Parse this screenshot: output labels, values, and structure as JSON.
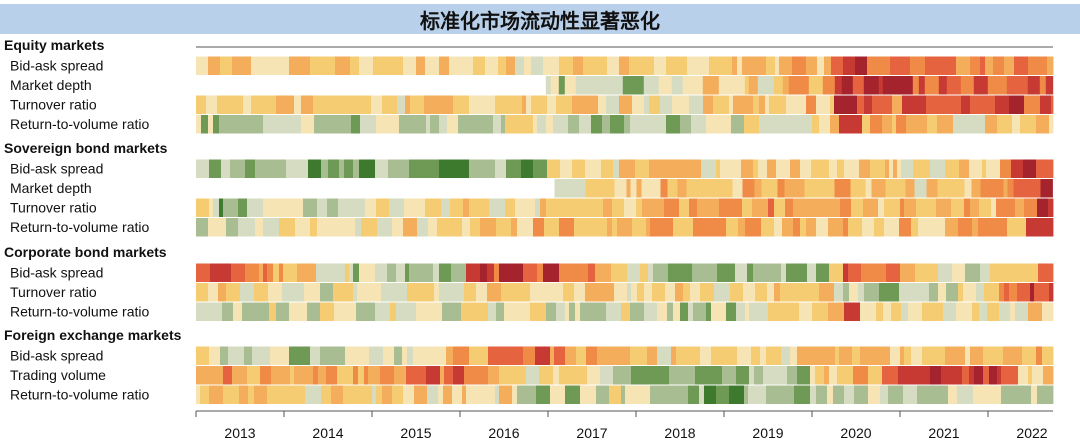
{
  "title": "标准化市场流动性显著恶化",
  "chart_data": {
    "type": "heatmap",
    "title": "标准化市场流动性显著恶化",
    "x_start": 2012.55,
    "x_end": 2022.35,
    "years": [
      "2013",
      "2014",
      "2015",
      "2016",
      "2017",
      "2018",
      "2019",
      "2020",
      "2021",
      "2022"
    ],
    "palette": [
      "#3d7a2e",
      "#6f9a56",
      "#a9bd92",
      "#d6dcc2",
      "#f6e4b4",
      "#f6cc73",
      "#f4ad5a",
      "#ef8a47",
      "#e5633f",
      "#c73a34",
      "#a5232c"
    ],
    "groups": [
      {
        "name": "Equity markets",
        "rows": [
          {
            "label": "Bid-ask spread",
            "start": 2012.55,
            "profile": [
              [
                2012.55,
                4.6
              ],
              [
                2014.5,
                5.2
              ],
              [
                2017.0,
                4.8
              ],
              [
                2018.2,
                4.0
              ],
              [
                2019.8,
                5.5
              ],
              [
                2019.95,
                9.6
              ],
              [
                2020.3,
                8.5
              ],
              [
                2021.2,
                7.0
              ],
              [
                2022.0,
                7.2
              ],
              [
                2022.3,
                7.0
              ]
            ]
          },
          {
            "label": "Market depth",
            "start": 2016.55,
            "profile": [
              [
                2016.55,
                2.2
              ],
              [
                2017.5,
                2.6
              ],
              [
                2018.4,
                4.5
              ],
              [
                2019.8,
                5.5
              ],
              [
                2019.95,
                9.5
              ],
              [
                2020.5,
                8.8
              ],
              [
                2021.3,
                7.4
              ],
              [
                2022.0,
                8.2
              ],
              [
                2022.3,
                8.0
              ]
            ]
          },
          {
            "label": "Turnover ratio",
            "start": 2012.55,
            "profile": [
              [
                2012.55,
                5.0
              ],
              [
                2014.5,
                4.8
              ],
              [
                2016.5,
                5.0
              ],
              [
                2018.0,
                4.6
              ],
              [
                2019.8,
                5.5
              ],
              [
                2019.95,
                9.5
              ],
              [
                2020.5,
                7.6
              ],
              [
                2021.3,
                8.4
              ],
              [
                2022.3,
                8.6
              ]
            ]
          },
          {
            "label": "Return-to-volume ratio",
            "start": 2012.55,
            "profile": [
              [
                2012.55,
                2.8
              ],
              [
                2014.5,
                3.0
              ],
              [
                2016.5,
                3.6
              ],
              [
                2017.5,
                1.8
              ],
              [
                2019.0,
                3.6
              ],
              [
                2019.8,
                4.4
              ],
              [
                2019.95,
                9.8
              ],
              [
                2020.3,
                5.5
              ],
              [
                2021.5,
                4.6
              ],
              [
                2022.3,
                4.9
              ]
            ]
          }
        ]
      },
      {
        "name": "Sovereign bond markets",
        "rows": [
          {
            "label": "Bid-ask spread",
            "start": 2012.55,
            "profile": [
              [
                2012.55,
                1.8
              ],
              [
                2016.5,
                1.2
              ],
              [
                2016.62,
                5.0
              ],
              [
                2019.8,
                5.0
              ],
              [
                2021.0,
                4.3
              ],
              [
                2021.7,
                5.4
              ],
              [
                2022.0,
                8.8
              ],
              [
                2022.3,
                9.6
              ]
            ]
          },
          {
            "label": "Market depth",
            "start": 2016.65,
            "profile": [
              [
                2016.65,
                4.0
              ],
              [
                2018.0,
                5.5
              ],
              [
                2019.8,
                6.0
              ],
              [
                2020.5,
                4.5
              ],
              [
                2021.5,
                5.5
              ],
              [
                2022.0,
                8.8
              ],
              [
                2022.3,
                9.4
              ]
            ]
          },
          {
            "label": "Turnover ratio",
            "start": 2012.55,
            "profile": [
              [
                2012.55,
                7.0
              ],
              [
                2012.8,
                1.5
              ],
              [
                2014.0,
                3.8
              ],
              [
                2016.5,
                4.4
              ],
              [
                2018.5,
                6.4
              ],
              [
                2019.8,
                6.0
              ],
              [
                2021.0,
                5.2
              ],
              [
                2022.0,
                6.0
              ],
              [
                2022.3,
                9.6
              ]
            ]
          },
          {
            "label": "Return-to-volume ratio",
            "start": 2012.55,
            "profile": [
              [
                2012.55,
                3.2
              ],
              [
                2015.0,
                4.4
              ],
              [
                2016.5,
                5.4
              ],
              [
                2018.5,
                6.2
              ],
              [
                2019.8,
                5.6
              ],
              [
                2021.0,
                5.2
              ],
              [
                2022.0,
                6.5
              ],
              [
                2022.3,
                9.6
              ]
            ]
          }
        ]
      },
      {
        "name": "Corporate bond markets",
        "rows": [
          {
            "label": "Bid-ask spread",
            "start": 2012.55,
            "profile": [
              [
                2012.55,
                9.0
              ],
              [
                2013.5,
                6.8
              ],
              [
                2014.5,
                2.4
              ],
              [
                2015.5,
                2.6
              ],
              [
                2015.75,
                8.6
              ],
              [
                2016.8,
                8.4
              ],
              [
                2017.3,
                4.8
              ],
              [
                2018.0,
                1.8
              ],
              [
                2019.7,
                2.2
              ],
              [
                2019.95,
                9.0
              ],
              [
                2020.8,
                6.4
              ],
              [
                2021.5,
                1.8
              ],
              [
                2022.3,
                7.6
              ]
            ]
          },
          {
            "label": "Turnover ratio",
            "start": 2012.55,
            "profile": [
              [
                2012.55,
                4.4
              ],
              [
                2014.5,
                3.4
              ],
              [
                2016.5,
                4.6
              ],
              [
                2018.5,
                5.0
              ],
              [
                2019.8,
                5.2
              ],
              [
                2019.95,
                3.6
              ],
              [
                2020.5,
                1.8
              ],
              [
                2021.5,
                4.0
              ],
              [
                2022.0,
                8.8
              ],
              [
                2022.3,
                9.6
              ]
            ]
          },
          {
            "label": "Return-to-volume ratio",
            "start": 2012.55,
            "profile": [
              [
                2012.55,
                3.2
              ],
              [
                2014.5,
                3.0
              ],
              [
                2016.5,
                3.4
              ],
              [
                2018.5,
                2.8
              ],
              [
                2019.8,
                4.6
              ],
              [
                2019.95,
                9.2
              ],
              [
                2020.3,
                4.6
              ],
              [
                2021.5,
                4.0
              ],
              [
                2022.3,
                5.4
              ]
            ]
          }
        ]
      },
      {
        "name": "Foreign exchange markets",
        "rows": [
          {
            "label": "Bid-ask spread",
            "start": 2012.55,
            "profile": [
              [
                2012.55,
                3.6
              ],
              [
                2013.5,
                2.4
              ],
              [
                2015.0,
                3.6
              ],
              [
                2016.5,
                8.4
              ],
              [
                2016.9,
                5.4
              ],
              [
                2018.5,
                4.4
              ],
              [
                2019.8,
                4.6
              ],
              [
                2021.0,
                5.6
              ],
              [
                2022.3,
                5.6
              ]
            ]
          },
          {
            "label": "Trading volume",
            "start": 2012.55,
            "profile": [
              [
                2012.55,
                7.2
              ],
              [
                2013.2,
                5.6
              ],
              [
                2014.5,
                6.2
              ],
              [
                2015.5,
                7.6
              ],
              [
                2016.5,
                3.2
              ],
              [
                2017.0,
                5.0
              ],
              [
                2017.6,
                2.0
              ],
              [
                2019.5,
                2.2
              ],
              [
                2019.95,
                6.0
              ],
              [
                2021.0,
                8.6
              ],
              [
                2021.7,
                9.2
              ],
              [
                2022.0,
                5.4
              ],
              [
                2022.3,
                5.0
              ]
            ]
          },
          {
            "label": "Return-to-volume ratio",
            "start": 2012.55,
            "profile": [
              [
                2012.55,
                4.6
              ],
              [
                2014.0,
                4.4
              ],
              [
                2016.0,
                4.6
              ],
              [
                2016.5,
                2.4
              ],
              [
                2017.5,
                3.0
              ],
              [
                2018.0,
                1.4
              ],
              [
                2019.5,
                1.8
              ],
              [
                2020.5,
                3.0
              ],
              [
                2022.0,
                3.6
              ],
              [
                2022.3,
                3.4
              ]
            ]
          }
        ]
      }
    ],
    "grid": false,
    "legend": "none"
  }
}
